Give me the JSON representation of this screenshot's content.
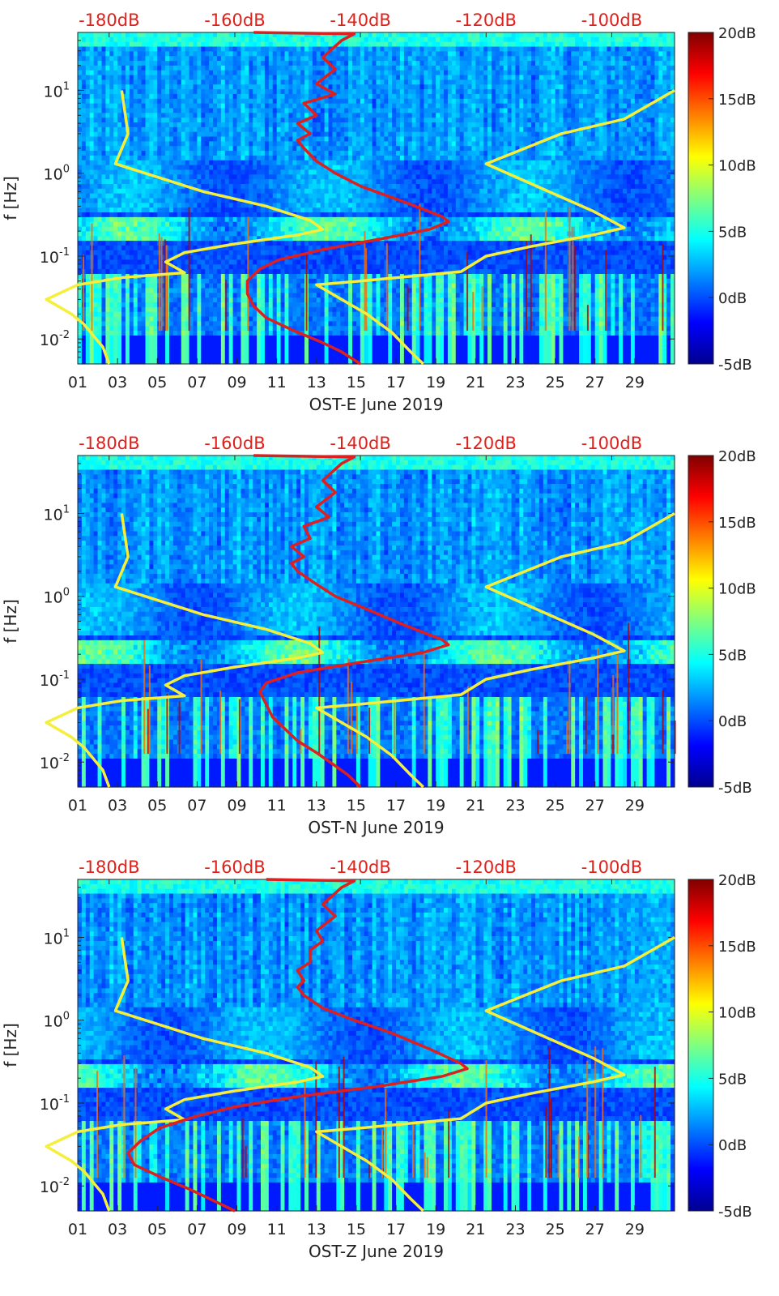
{
  "chart_data": [
    {
      "type": "heatmap",
      "xlabel": "OST-E June 2019",
      "ylabel": "f [Hz]",
      "x_ticks": [
        "01",
        "03",
        "05",
        "07",
        "09",
        "11",
        "13",
        "15",
        "17",
        "19",
        "21",
        "23",
        "25",
        "27",
        "29"
      ],
      "y_ticks": [
        "10^-2",
        "10^-1",
        "10^0",
        "10^1"
      ],
      "top_ticks": [
        "-180dB",
        "-160dB",
        "-140dB",
        "-120dB",
        "-100dB"
      ],
      "top_axis_range_db": [
        -185,
        -90
      ],
      "x_range_days": [
        1,
        31
      ],
      "y_range_hz": [
        0.005,
        50
      ],
      "y_scale": "log",
      "colorbar": {
        "ticks": [
          "20dB",
          "15dB",
          "10dB",
          "5dB",
          "0dB",
          "-5dB"
        ],
        "range_db": [
          -5,
          20
        ],
        "colormap": "jet"
      },
      "series": [
        {
          "color": "#f5ee3a",
          "points": [
            [
              -178,
              10
            ],
            [
              -177,
              3
            ],
            [
              -179,
              1.3
            ],
            [
              -165,
              0.6
            ],
            [
              -155,
              0.4
            ],
            [
              -148,
              0.27
            ],
            [
              -146,
              0.21
            ],
            [
              -150,
              0.18
            ],
            [
              -160,
              0.14
            ],
            [
              -168,
              0.11
            ],
            [
              -171,
              0.085
            ],
            [
              -168,
              0.063
            ],
            [
              -178,
              0.055
            ],
            [
              -185,
              0.045
            ],
            [
              -190,
              0.03
            ],
            [
              -186,
              0.02
            ],
            [
              -184,
              0.015
            ],
            [
              -181,
              0.008
            ],
            [
              -180,
              0.005
            ]
          ]
        },
        {
          "color": "#f5ee3a",
          "points": [
            [
              -90,
              10
            ],
            [
              -98,
              4.5
            ],
            [
              -108,
              3
            ],
            [
              -120,
              1.3
            ],
            [
              -110,
              0.6
            ],
            [
              -103,
              0.35
            ],
            [
              -98,
              0.22
            ],
            [
              -103,
              0.18
            ],
            [
              -113,
              0.13
            ],
            [
              -120,
              0.1
            ],
            [
              -124,
              0.065
            ],
            [
              -140,
              0.05
            ],
            [
              -147,
              0.045
            ],
            [
              -143,
              0.03
            ],
            [
              -139,
              0.02
            ],
            [
              -135,
              0.012
            ],
            [
              -132,
              0.007
            ],
            [
              -130,
              0.005
            ]
          ]
        },
        {
          "color": "#dd1f1f",
          "points": [
            [
              -157,
              50
            ],
            [
              -141,
              48
            ],
            [
              -143,
              40
            ],
            [
              -146,
              25
            ],
            [
              -144,
              18
            ],
            [
              -147,
              12
            ],
            [
              -144,
              9
            ],
            [
              -149,
              7
            ],
            [
              -147,
              5
            ],
            [
              -150,
              4
            ],
            [
              -148,
              3
            ],
            [
              -150,
              2.5
            ],
            [
              -149,
              2
            ],
            [
              -147,
              1.4
            ],
            [
              -144,
              1
            ],
            [
              -140,
              0.7
            ],
            [
              -133,
              0.45
            ],
            [
              -127,
              0.3
            ],
            [
              -126,
              0.26
            ],
            [
              -129,
              0.21
            ],
            [
              -137,
              0.16
            ],
            [
              -146,
              0.12
            ],
            [
              -153,
              0.09
            ],
            [
              -156,
              0.07
            ],
            [
              -158,
              0.05
            ],
            [
              -158,
              0.035
            ],
            [
              -157,
              0.025
            ],
            [
              -155,
              0.018
            ],
            [
              -151,
              0.013
            ],
            [
              -146,
              0.009
            ],
            [
              -143,
              0.007
            ],
            [
              -140,
              0.005
            ]
          ]
        }
      ]
    },
    {
      "type": "heatmap",
      "xlabel": "OST-N June 2019",
      "ylabel": "f [Hz]",
      "x_ticks": [
        "01",
        "03",
        "05",
        "07",
        "09",
        "11",
        "13",
        "15",
        "17",
        "19",
        "21",
        "23",
        "25",
        "27",
        "29"
      ],
      "y_ticks": [
        "10^-2",
        "10^-1",
        "10^0",
        "10^1"
      ],
      "top_ticks": [
        "-180dB",
        "-160dB",
        "-140dB",
        "-120dB",
        "-100dB"
      ],
      "top_axis_range_db": [
        -185,
        -90
      ],
      "x_range_days": [
        1,
        31
      ],
      "y_range_hz": [
        0.005,
        50
      ],
      "y_scale": "log",
      "colorbar": {
        "ticks": [
          "20dB",
          "15dB",
          "10dB",
          "5dB",
          "0dB",
          "-5dB"
        ],
        "range_db": [
          -5,
          20
        ],
        "colormap": "jet"
      },
      "series": [
        {
          "color": "#f5ee3a",
          "points": [
            [
              -178,
              10
            ],
            [
              -177,
              3
            ],
            [
              -179,
              1.3
            ],
            [
              -165,
              0.6
            ],
            [
              -155,
              0.4
            ],
            [
              -148,
              0.27
            ],
            [
              -146,
              0.21
            ],
            [
              -150,
              0.18
            ],
            [
              -160,
              0.14
            ],
            [
              -168,
              0.11
            ],
            [
              -171,
              0.085
            ],
            [
              -168,
              0.063
            ],
            [
              -178,
              0.055
            ],
            [
              -185,
              0.045
            ],
            [
              -190,
              0.03
            ],
            [
              -186,
              0.02
            ],
            [
              -184,
              0.015
            ],
            [
              -181,
              0.008
            ],
            [
              -180,
              0.005
            ]
          ]
        },
        {
          "color": "#f5ee3a",
          "points": [
            [
              -90,
              10
            ],
            [
              -98,
              4.5
            ],
            [
              -108,
              3
            ],
            [
              -120,
              1.3
            ],
            [
              -110,
              0.6
            ],
            [
              -103,
              0.35
            ],
            [
              -98,
              0.22
            ],
            [
              -103,
              0.18
            ],
            [
              -113,
              0.13
            ],
            [
              -120,
              0.1
            ],
            [
              -124,
              0.065
            ],
            [
              -140,
              0.05
            ],
            [
              -147,
              0.045
            ],
            [
              -143,
              0.03
            ],
            [
              -139,
              0.02
            ],
            [
              -135,
              0.012
            ],
            [
              -132,
              0.007
            ],
            [
              -130,
              0.005
            ]
          ]
        },
        {
          "color": "#dd1f1f",
          "points": [
            [
              -157,
              50
            ],
            [
              -141,
              48
            ],
            [
              -143,
              40
            ],
            [
              -146,
              25
            ],
            [
              -144,
              18
            ],
            [
              -147,
              12
            ],
            [
              -145,
              9
            ],
            [
              -149,
              7
            ],
            [
              -148,
              5
            ],
            [
              -151,
              4
            ],
            [
              -149,
              3
            ],
            [
              -151,
              2.5
            ],
            [
              -150,
              2
            ],
            [
              -147,
              1.4
            ],
            [
              -144,
              1
            ],
            [
              -139,
              0.7
            ],
            [
              -133,
              0.45
            ],
            [
              -127,
              0.3
            ],
            [
              -126,
              0.26
            ],
            [
              -130,
              0.21
            ],
            [
              -140,
              0.16
            ],
            [
              -150,
              0.12
            ],
            [
              -155,
              0.09
            ],
            [
              -156,
              0.07
            ],
            [
              -155,
              0.05
            ],
            [
              -154,
              0.035
            ],
            [
              -152,
              0.025
            ],
            [
              -150,
              0.018
            ],
            [
              -147,
              0.013
            ],
            [
              -144,
              0.009
            ],
            [
              -142,
              0.007
            ],
            [
              -140,
              0.005
            ]
          ]
        }
      ]
    },
    {
      "type": "heatmap",
      "xlabel": "OST-Z June 2019",
      "ylabel": "f [Hz]",
      "x_ticks": [
        "01",
        "03",
        "05",
        "07",
        "09",
        "11",
        "13",
        "15",
        "17",
        "19",
        "21",
        "23",
        "25",
        "27",
        "29"
      ],
      "y_ticks": [
        "10^-2",
        "10^-1",
        "10^0",
        "10^1"
      ],
      "top_ticks": [
        "-180dB",
        "-160dB",
        "-140dB",
        "-120dB",
        "-100dB"
      ],
      "top_axis_range_db": [
        -185,
        -90
      ],
      "x_range_days": [
        1,
        31
      ],
      "y_range_hz": [
        0.005,
        50
      ],
      "y_scale": "log",
      "colorbar": {
        "ticks": [
          "20dB",
          "15dB",
          "10dB",
          "5dB",
          "0dB",
          "-5dB"
        ],
        "range_db": [
          -5,
          20
        ],
        "colormap": "jet"
      },
      "series": [
        {
          "color": "#f5ee3a",
          "points": [
            [
              -178,
              10
            ],
            [
              -177,
              3
            ],
            [
              -179,
              1.3
            ],
            [
              -165,
              0.6
            ],
            [
              -155,
              0.4
            ],
            [
              -148,
              0.27
            ],
            [
              -146,
              0.21
            ],
            [
              -150,
              0.18
            ],
            [
              -160,
              0.14
            ],
            [
              -168,
              0.11
            ],
            [
              -171,
              0.085
            ],
            [
              -168,
              0.063
            ],
            [
              -178,
              0.055
            ],
            [
              -185,
              0.045
            ],
            [
              -190,
              0.03
            ],
            [
              -186,
              0.02
            ],
            [
              -184,
              0.015
            ],
            [
              -181,
              0.008
            ],
            [
              -180,
              0.005
            ]
          ]
        },
        {
          "color": "#f5ee3a",
          "points": [
            [
              -90,
              10
            ],
            [
              -98,
              4.5
            ],
            [
              -108,
              3
            ],
            [
              -120,
              1.3
            ],
            [
              -110,
              0.6
            ],
            [
              -103,
              0.35
            ],
            [
              -98,
              0.22
            ],
            [
              -103,
              0.18
            ],
            [
              -113,
              0.13
            ],
            [
              -120,
              0.1
            ],
            [
              -124,
              0.065
            ],
            [
              -140,
              0.05
            ],
            [
              -147,
              0.045
            ],
            [
              -143,
              0.03
            ],
            [
              -139,
              0.02
            ],
            [
              -135,
              0.012
            ],
            [
              -132,
              0.007
            ],
            [
              -130,
              0.005
            ]
          ]
        },
        {
          "color": "#dd1f1f",
          "points": [
            [
              -155,
              50
            ],
            [
              -141,
              48
            ],
            [
              -143,
              40
            ],
            [
              -146,
              25
            ],
            [
              -144,
              18
            ],
            [
              -147,
              12
            ],
            [
              -146,
              9
            ],
            [
              -148,
              7
            ],
            [
              -148,
              5
            ],
            [
              -150,
              4
            ],
            [
              -149,
              3
            ],
            [
              -150,
              2.5
            ],
            [
              -149,
              2
            ],
            [
              -146,
              1.4
            ],
            [
              -141,
              1
            ],
            [
              -135,
              0.7
            ],
            [
              -129,
              0.45
            ],
            [
              -124,
              0.3
            ],
            [
              -123,
              0.26
            ],
            [
              -127,
              0.21
            ],
            [
              -137,
              0.16
            ],
            [
              -150,
              0.12
            ],
            [
              -160,
              0.09
            ],
            [
              -166,
              0.07
            ],
            [
              -172,
              0.05
            ],
            [
              -175,
              0.035
            ],
            [
              -177,
              0.025
            ],
            [
              -176,
              0.018
            ],
            [
              -172,
              0.013
            ],
            [
              -167,
              0.009
            ],
            [
              -164,
              0.007
            ],
            [
              -160,
              0.005
            ]
          ]
        }
      ]
    }
  ]
}
